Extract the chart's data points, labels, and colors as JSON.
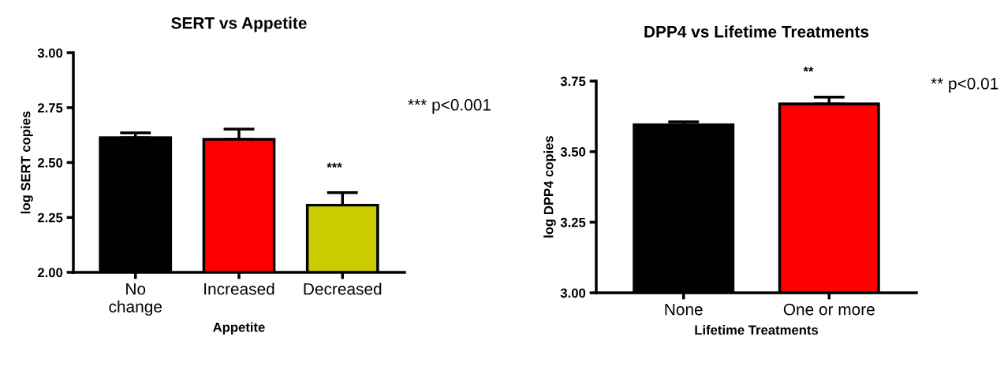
{
  "chart_data": [
    {
      "type": "bar",
      "title": "SERT vs Appetite",
      "xlabel": "Appetite",
      "ylabel": "log SERT copies",
      "categories": [
        "No\nchange",
        "Increased",
        "Decreased"
      ],
      "values": [
        2.613,
        2.606,
        2.306
      ],
      "errors": [
        0.022,
        0.046,
        0.057
      ],
      "colors": [
        "#000000",
        "#ff0000",
        "#cccc00"
      ],
      "ylim": [
        2.0,
        3.0
      ],
      "yticks": [
        {
          "value": 2.0,
          "label": "2.00"
        },
        {
          "value": 2.25,
          "label": "2.25"
        },
        {
          "value": 2.5,
          "label": "2.50"
        },
        {
          "value": 2.75,
          "label": "2.75"
        },
        {
          "value": 3.0,
          "label": "3.00"
        }
      ],
      "annotations": [
        "***",
        "*** p<0.001"
      ],
      "grid": false,
      "legend": false
    },
    {
      "type": "bar",
      "title": "DPP4 vs Lifetime Treatments",
      "xlabel": "Lifetime Treatments",
      "ylabel": "log DPP4 copies",
      "categories": [
        "None",
        "One or more"
      ],
      "values": [
        3.595,
        3.669
      ],
      "errors": [
        0.011,
        0.024
      ],
      "colors": [
        "#000000",
        "#ff0000"
      ],
      "ylim": [
        3.0,
        3.75
      ],
      "yticks": [
        {
          "value": 3.0,
          "label": "3.00"
        },
        {
          "value": 3.25,
          "label": "3.25"
        },
        {
          "value": 3.5,
          "label": "3.50"
        },
        {
          "value": 3.75,
          "label": "3.75"
        }
      ],
      "annotations": [
        "**",
        "** p<0.01"
      ],
      "grid": false,
      "legend": false
    }
  ]
}
